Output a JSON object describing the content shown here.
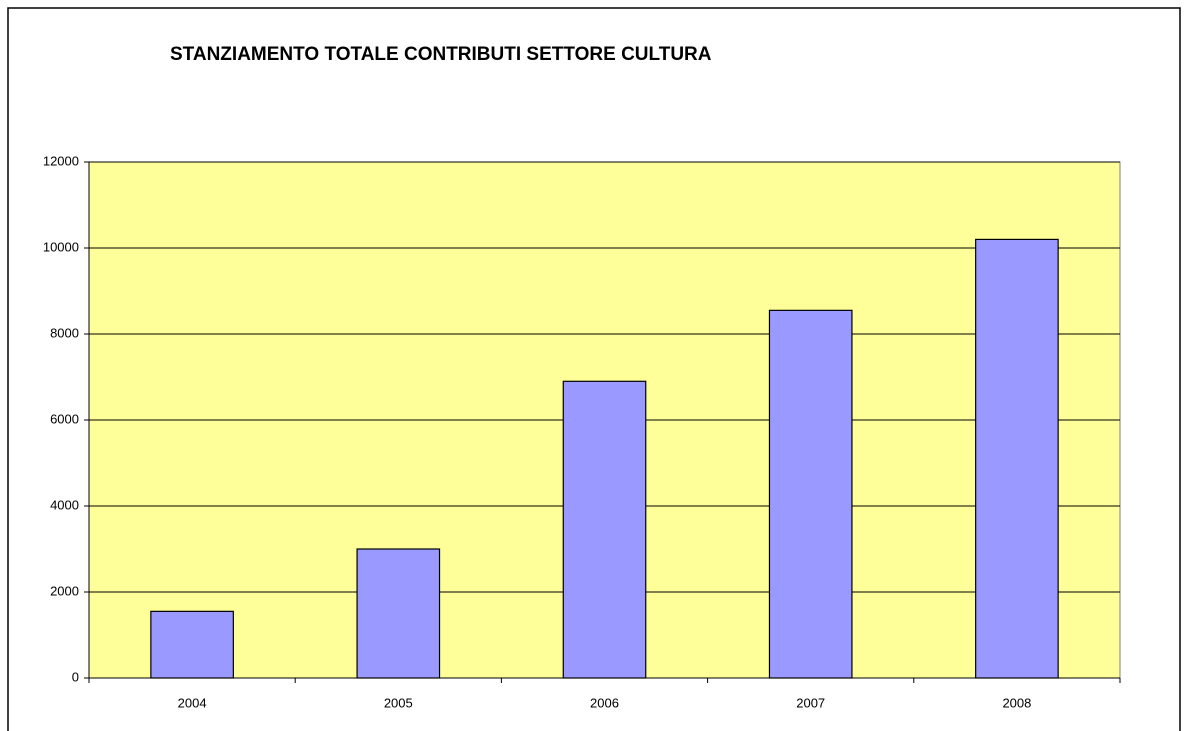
{
  "chart_data": {
    "type": "bar",
    "title": "STANZIAMENTO TOTALE CONTRIBUTI SETTORE CULTURA",
    "categories": [
      "2004",
      "2005",
      "2006",
      "2007",
      "2008"
    ],
    "values": [
      1550,
      3000,
      6900,
      8550,
      10200
    ],
    "color": "#9999ff",
    "plot_background": "#ffff99",
    "ylim": [
      0,
      12000
    ],
    "yticks": [
      0,
      2000,
      4000,
      6000,
      8000,
      10000,
      12000
    ],
    "grid": true
  }
}
